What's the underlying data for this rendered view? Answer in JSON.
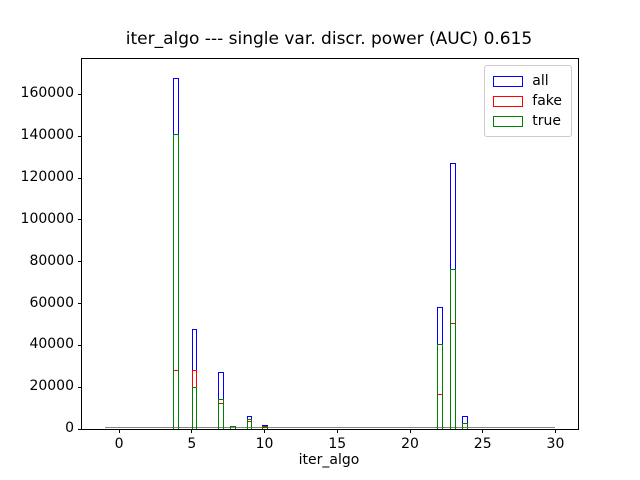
{
  "chart_data": {
    "type": "bar",
    "subtype": "overlaid-step-histograms",
    "title": "iter_algo --- single var. discr. power (AUC) 0.615",
    "xlabel": "iter_algo",
    "ylabel": "",
    "xlim": [
      -2.55,
      31.55
    ],
    "ylim": [
      0,
      176900
    ],
    "x_ticks": [
      0,
      5,
      10,
      15,
      20,
      25,
      30
    ],
    "y_ticks": [
      0,
      20000,
      40000,
      60000,
      80000,
      100000,
      120000,
      140000,
      160000
    ],
    "grid": false,
    "legend_position": "upper right",
    "legend": [
      {
        "name": "all",
        "label": "all",
        "color": "#0000ff"
      },
      {
        "name": "fake",
        "label": "fake",
        "color": "#ff0000"
      },
      {
        "name": "true",
        "label": "true",
        "color": "#008000"
      }
    ],
    "histogram_range": [
      -1,
      30
    ],
    "bin_width": 0.4,
    "baseline_color": "#87867e",
    "series": [
      {
        "name": "all",
        "color": "#0000ff",
        "z": 1
      },
      {
        "name": "fake",
        "color": "#ff0000",
        "z": 2
      },
      {
        "name": "true",
        "color": "#008000",
        "z": 3
      }
    ],
    "bars": [
      {
        "x": 3.93,
        "all": 168000,
        "fake": 28000,
        "true": 141000
      },
      {
        "x": 5.19,
        "all": 48000,
        "fake": 28300,
        "true": 20300
      },
      {
        "x": 7.02,
        "all": 27300,
        "fake": 12400,
        "true": 14400
      },
      {
        "x": 7.81,
        "all": 1600,
        "fake": 0,
        "true": 1600
      },
      {
        "x": 8.97,
        "all": 6400,
        "fake": 3600,
        "true": 4800
      },
      {
        "x": 10.05,
        "all": 2000,
        "fake": 800,
        "true": 1300
      },
      {
        "x": 22.04,
        "all": 58400,
        "fake": 16800,
        "true": 40800
      },
      {
        "x": 22.98,
        "all": 127000,
        "fake": 50800,
        "true": 76700
      },
      {
        "x": 23.8,
        "all": 6400,
        "fake": 2700,
        "true": 3000
      }
    ]
  }
}
